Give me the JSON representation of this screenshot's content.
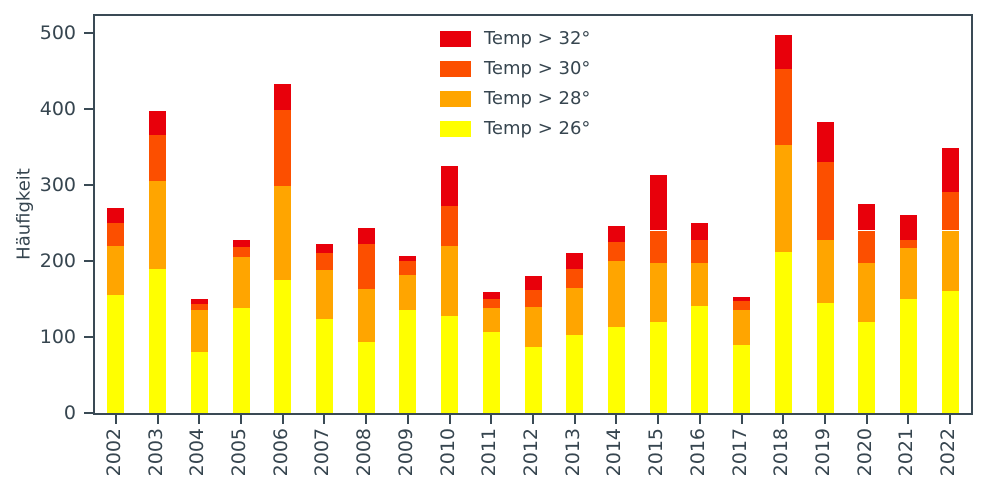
{
  "figure": {
    "background": "#ffffff",
    "text_color": "#36454f",
    "spine_color": "#3a4a55"
  },
  "chart_data": {
    "type": "bar",
    "stacked": true,
    "title": "",
    "xlabel": "",
    "ylabel": "Häufigkeit",
    "ylim": [
      0,
      522
    ],
    "yticks": [
      0,
      100,
      200,
      300,
      400,
      500
    ],
    "grid": false,
    "legend_position": "upper-center-inside",
    "categories": [
      "2002",
      "2003",
      "2004",
      "2005",
      "2006",
      "2007",
      "2008",
      "2009",
      "2010",
      "2011",
      "2012",
      "2013",
      "2014",
      "2015",
      "2016",
      "2017",
      "2018",
      "2019",
      "2020",
      "2021",
      "2022"
    ],
    "series": [
      {
        "name": "Temp > 26°",
        "color": "#ffff00",
        "values": [
          155,
          190,
          80,
          138,
          175,
          123,
          93,
          136,
          128,
          106,
          87,
          102,
          113,
          120,
          141,
          90,
          212,
          144,
          120,
          150,
          160
        ]
      },
      {
        "name": "Temp > 28°",
        "color": "#ffa500",
        "values": [
          65,
          115,
          55,
          67,
          123,
          65,
          70,
          46,
          92,
          32,
          53,
          63,
          87,
          77,
          56,
          45,
          140,
          84,
          77,
          67,
          80
        ]
      },
      {
        "name": "Temp > 30°",
        "color": "#fc4f00",
        "values": [
          30,
          60,
          8,
          13,
          100,
          22,
          59,
          18,
          52,
          12,
          22,
          25,
          25,
          43,
          31,
          12,
          100,
          102,
          43,
          11,
          50
        ]
      },
      {
        "name": "Temp > 32°",
        "color": "#e8000b",
        "values": [
          20,
          32,
          7,
          9,
          34,
          12,
          21,
          7,
          53,
          9,
          18,
          21,
          21,
          73,
          22,
          6,
          45,
          52,
          35,
          33,
          59
        ]
      }
    ],
    "legend_order": [
      "Temp > 32°",
      "Temp > 30°",
      "Temp > 28°",
      "Temp > 26°"
    ]
  }
}
